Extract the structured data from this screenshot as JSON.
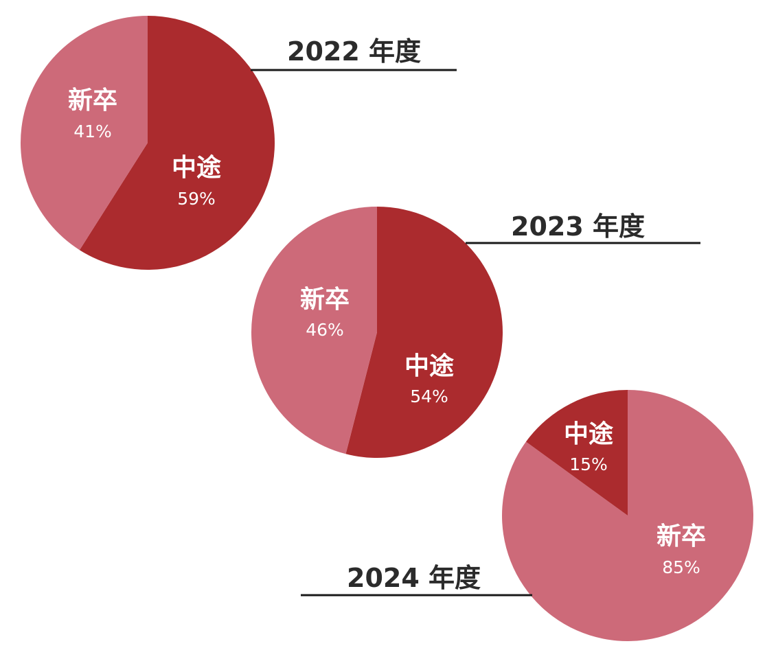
{
  "colors": {
    "chuto": "#ab2b2e",
    "shinsotsu": "#cd6a79",
    "rule": "#1a1a1a",
    "title_text": "#2b2b2b",
    "label_text": "#ffffff"
  },
  "chart_data": [
    {
      "type": "pie",
      "title": "2022 年度",
      "slices": [
        {
          "label": "中途",
          "value": 59,
          "value_label": "59%",
          "color": "#ab2b2e"
        },
        {
          "label": "新卒",
          "value": 41,
          "value_label": "41%",
          "color": "#cd6a79"
        }
      ]
    },
    {
      "type": "pie",
      "title": "2023 年度",
      "slices": [
        {
          "label": "中途",
          "value": 54,
          "value_label": "54%",
          "color": "#ab2b2e"
        },
        {
          "label": "新卒",
          "value": 46,
          "value_label": "46%",
          "color": "#cd6a79"
        }
      ]
    },
    {
      "type": "pie",
      "title": "2024 年度",
      "slices": [
        {
          "label": "新卒",
          "value": 85,
          "value_label": "85%",
          "color": "#cd6a79"
        },
        {
          "label": "中途",
          "value": 15,
          "value_label": "15%",
          "color": "#ab2b2e"
        }
      ]
    }
  ]
}
